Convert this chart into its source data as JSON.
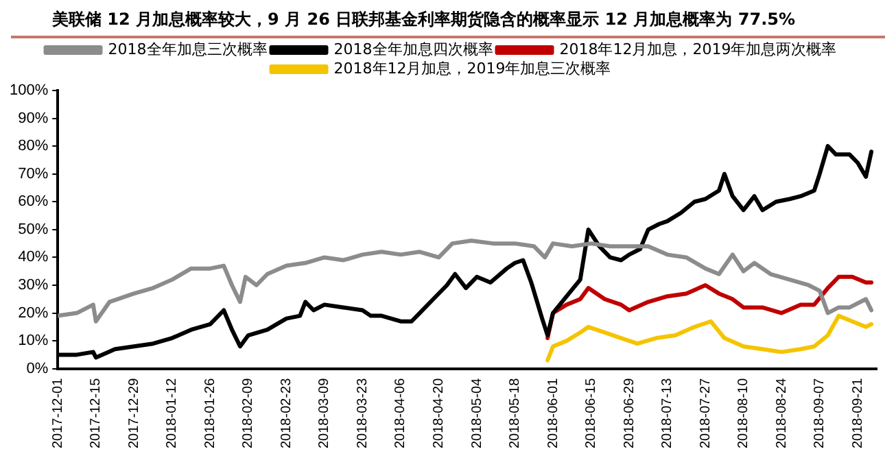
{
  "chart_data": {
    "type": "line",
    "title": "美联储 12 月加息概率较大，9 月 26 日联邦基金利率期货隐含的概率显示 12 月加息概率为 77.5%",
    "xlim": [
      "2017-12-01",
      "2018-09-28"
    ],
    "xticks": [
      "2017-12-01",
      "2017-12-15",
      "2017-12-29",
      "2018-01-12",
      "2018-01-26",
      "2018-02-09",
      "2018-02-23",
      "2018-03-09",
      "2018-03-23",
      "2018-04-06",
      "2018-04-20",
      "2018-05-04",
      "2018-05-18",
      "2018-06-01",
      "2018-06-15",
      "2018-06-29",
      "2018-07-13",
      "2018-07-27",
      "2018-08-10",
      "2018-08-24",
      "2018-09-07",
      "2018-09-21"
    ],
    "ylim": [
      0,
      100
    ],
    "yticks": [
      {
        "value": 0,
        "label": "0%"
      },
      {
        "value": 10,
        "label": "10%"
      },
      {
        "value": 20,
        "label": "20%"
      },
      {
        "value": 30,
        "label": "30%"
      },
      {
        "value": 40,
        "label": "40%"
      },
      {
        "value": 50,
        "label": "50%"
      },
      {
        "value": 60,
        "label": "60%"
      },
      {
        "value": 70,
        "label": "70%"
      },
      {
        "value": 80,
        "label": "80%"
      },
      {
        "value": 90,
        "label": "90%"
      },
      {
        "value": 100,
        "label": "100%"
      }
    ],
    "grid": false,
    "legend": "top",
    "marker": "none",
    "line_style": "solid",
    "series": [
      {
        "name": "2018全年加息三次概率",
        "color": "#8c8c8c",
        "x": [
          "2017-12-01",
          "2017-12-08",
          "2017-12-14",
          "2017-12-15",
          "2017-12-20",
          "2017-12-29",
          "2018-01-05",
          "2018-01-12",
          "2018-01-19",
          "2018-01-26",
          "2018-01-31",
          "2018-02-03",
          "2018-02-06",
          "2018-02-08",
          "2018-02-12",
          "2018-02-16",
          "2018-02-23",
          "2018-03-02",
          "2018-03-09",
          "2018-03-16",
          "2018-03-23",
          "2018-03-30",
          "2018-04-06",
          "2018-04-13",
          "2018-04-20",
          "2018-04-25",
          "2018-05-02",
          "2018-05-10",
          "2018-05-18",
          "2018-05-25",
          "2018-05-29",
          "2018-06-01",
          "2018-06-08",
          "2018-06-15",
          "2018-06-22",
          "2018-06-29",
          "2018-07-06",
          "2018-07-13",
          "2018-07-20",
          "2018-07-27",
          "2018-08-01",
          "2018-08-06",
          "2018-08-10",
          "2018-08-14",
          "2018-08-20",
          "2018-08-27",
          "2018-09-03",
          "2018-09-07",
          "2018-09-10",
          "2018-09-14",
          "2018-09-18",
          "2018-09-24",
          "2018-09-26"
        ],
        "values": [
          19,
          20,
          23,
          17,
          24,
          27,
          29,
          32,
          36,
          36,
          37,
          30,
          24,
          33,
          30,
          34,
          37,
          38,
          40,
          39,
          41,
          42,
          41,
          42,
          40,
          45,
          46,
          45,
          45,
          44,
          40,
          45,
          44,
          45,
          44,
          44,
          44,
          41,
          40,
          36,
          34,
          41,
          35,
          38,
          34,
          32,
          30,
          28,
          20,
          22,
          22,
          25,
          21
        ]
      },
      {
        "name": "2018全年加息四次概率",
        "color": "#000000",
        "x": [
          "2017-12-01",
          "2017-12-08",
          "2017-12-14",
          "2017-12-15",
          "2017-12-22",
          "2017-12-29",
          "2018-01-05",
          "2018-01-12",
          "2018-01-19",
          "2018-01-26",
          "2018-01-31",
          "2018-02-03",
          "2018-02-06",
          "2018-02-09",
          "2018-02-16",
          "2018-02-23",
          "2018-02-28",
          "2018-03-02",
          "2018-03-05",
          "2018-03-09",
          "2018-03-16",
          "2018-03-23",
          "2018-03-26",
          "2018-03-30",
          "2018-04-06",
          "2018-04-10",
          "2018-04-13",
          "2018-04-18",
          "2018-04-23",
          "2018-04-26",
          "2018-04-30",
          "2018-05-04",
          "2018-05-09",
          "2018-05-15",
          "2018-05-18",
          "2018-05-21",
          "2018-05-24",
          "2018-05-28",
          "2018-05-30",
          "2018-06-01",
          "2018-06-06",
          "2018-06-11",
          "2018-06-14",
          "2018-06-18",
          "2018-06-22",
          "2018-06-26",
          "2018-06-29",
          "2018-07-03",
          "2018-07-06",
          "2018-07-10",
          "2018-07-13",
          "2018-07-18",
          "2018-07-23",
          "2018-07-27",
          "2018-08-01",
          "2018-08-03",
          "2018-08-06",
          "2018-08-10",
          "2018-08-14",
          "2018-08-17",
          "2018-08-22",
          "2018-08-27",
          "2018-08-31",
          "2018-09-05",
          "2018-09-07",
          "2018-09-10",
          "2018-09-13",
          "2018-09-18",
          "2018-09-21",
          "2018-09-24",
          "2018-09-26"
        ],
        "values": [
          5,
          5,
          6,
          4,
          7,
          8,
          9,
          11,
          14,
          16,
          21,
          14,
          8,
          12,
          14,
          18,
          19,
          24,
          21,
          23,
          22,
          21,
          19,
          19,
          17,
          17,
          20,
          25,
          30,
          34,
          29,
          33,
          31,
          36,
          38,
          39,
          31,
          18,
          12,
          20,
          26,
          32,
          50,
          44,
          40,
          39,
          41,
          43,
          50,
          52,
          53,
          56,
          60,
          61,
          64,
          70,
          62,
          57,
          62,
          57,
          60,
          61,
          62,
          64,
          70,
          80,
          77,
          77,
          74,
          69,
          78
        ]
      },
      {
        "name": "2018年12月加息，2019年加息两次概率",
        "color": "#c00000",
        "x": [
          "2018-05-30",
          "2018-06-01",
          "2018-06-06",
          "2018-06-11",
          "2018-06-14",
          "2018-06-20",
          "2018-06-26",
          "2018-06-29",
          "2018-07-06",
          "2018-07-13",
          "2018-07-20",
          "2018-07-27",
          "2018-08-01",
          "2018-08-06",
          "2018-08-10",
          "2018-08-17",
          "2018-08-24",
          "2018-08-31",
          "2018-09-05",
          "2018-09-10",
          "2018-09-14",
          "2018-09-19",
          "2018-09-24",
          "2018-09-26"
        ],
        "values": [
          11,
          20,
          23,
          25,
          29,
          25,
          23,
          21,
          24,
          26,
          27,
          30,
          27,
          25,
          22,
          22,
          20,
          23,
          23,
          29,
          33,
          33,
          31,
          31
        ]
      },
      {
        "name": "2018年12月加息，2019年加息三次概率",
        "color": "#f5c400",
        "x": [
          "2018-05-30",
          "2018-06-01",
          "2018-06-06",
          "2018-06-11",
          "2018-06-14",
          "2018-06-20",
          "2018-06-26",
          "2018-07-02",
          "2018-07-09",
          "2018-07-16",
          "2018-07-23",
          "2018-07-29",
          "2018-08-03",
          "2018-08-10",
          "2018-08-17",
          "2018-08-24",
          "2018-08-31",
          "2018-09-05",
          "2018-09-10",
          "2018-09-14",
          "2018-09-19",
          "2018-09-24",
          "2018-09-26"
        ],
        "values": [
          3,
          8,
          10,
          13,
          15,
          13,
          11,
          9,
          11,
          12,
          15,
          17,
          11,
          8,
          7,
          6,
          7,
          8,
          12,
          19,
          17,
          15,
          16
        ]
      }
    ]
  }
}
